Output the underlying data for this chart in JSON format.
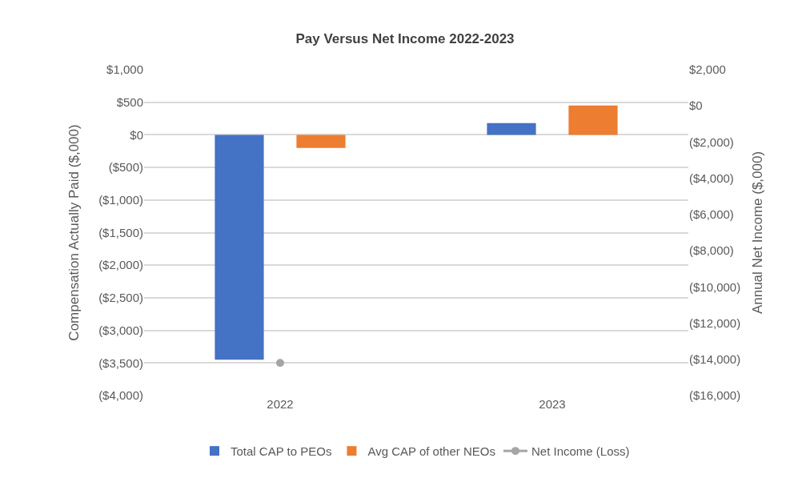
{
  "chart_data": {
    "type": "bar",
    "title": "Pay Versus Net Income 2022-2023",
    "ylabel": "Compensation Actually Paid ($,000)",
    "y2label": "Annual Net Income ($,000)",
    "categories": [
      "2022",
      "2023"
    ],
    "series": [
      {
        "name": "Total CAP to PEOs",
        "color": "#4472c4",
        "values": [
          -3450,
          180
        ]
      },
      {
        "name": "Avg CAP of other NEOs",
        "color": "#ed7d31",
        "values": [
          -200,
          450
        ]
      },
      {
        "name": "Net Income (Loss)",
        "type": "line",
        "axis": "y2",
        "color": "#a5a5a5",
        "marker": "circle",
        "values": [
          -14200,
          null
        ]
      }
    ],
    "ylim": [
      -4000,
      1000
    ],
    "yticks": [
      {
        "value": -4000,
        "label": "($4,000)"
      },
      {
        "value": -3500,
        "label": "($3,500)"
      },
      {
        "value": -3000,
        "label": "($3,000)"
      },
      {
        "value": -2500,
        "label": "($2,500)"
      },
      {
        "value": -2000,
        "label": "($2,000)"
      },
      {
        "value": -1500,
        "label": "($1,500)"
      },
      {
        "value": -1000,
        "label": "($1,000)"
      },
      {
        "value": -500,
        "label": "($500)"
      },
      {
        "value": 0,
        "label": "$0"
      },
      {
        "value": 500,
        "label": "$500"
      },
      {
        "value": 1000,
        "label": "$1,000"
      }
    ],
    "y2lim": [
      -16000,
      2000
    ],
    "y2ticks": [
      {
        "value": -16000,
        "label": "($16,000)"
      },
      {
        "value": -14000,
        "label": "($14,000)"
      },
      {
        "value": -12000,
        "label": "($12,000)"
      },
      {
        "value": -10000,
        "label": "($10,000)"
      },
      {
        "value": -8000,
        "label": "($8,000)"
      },
      {
        "value": -6000,
        "label": "($6,000)"
      },
      {
        "value": -4000,
        "label": "($4,000)"
      },
      {
        "value": -2000,
        "label": "($2,000)"
      },
      {
        "value": 0,
        "label": "$0"
      },
      {
        "value": 2000,
        "label": "$2,000"
      }
    ],
    "grid": "y",
    "legend": "bottom"
  }
}
